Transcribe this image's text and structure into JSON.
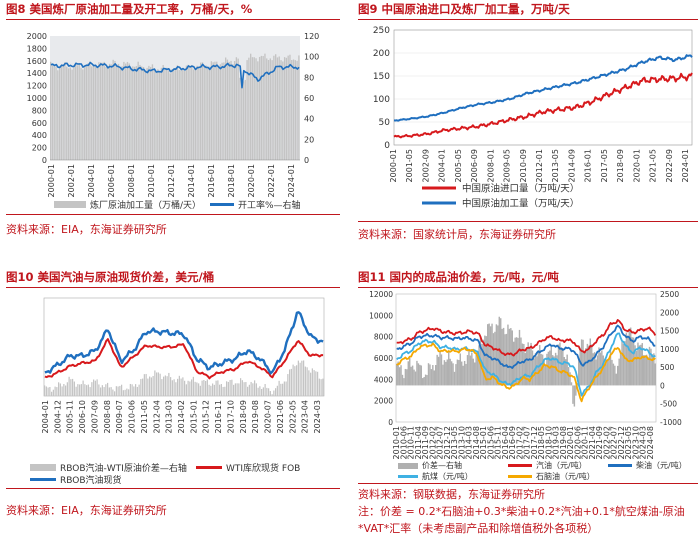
{
  "panels": [
    {
      "label": "图8",
      "title": "美国炼厂原油加工量及开工率，万桶/天，%",
      "source": "资料来源：EIA，东海证券研究所"
    },
    {
      "label": "图9",
      "title": "中国原油进口及炼厂加工量，万吨/天",
      "source": "资料来源：国家统计局，东海证券研究所"
    },
    {
      "label": "图10",
      "title": "美国汽油与原油现货价差，美元/桶",
      "source": "资料来源：EIA，东海证券研究所"
    },
    {
      "label": "图11",
      "title": "国内的成品油价差，元/吨，元/吨",
      "source": "资料来源：钢联数据，东海证券研究所",
      "note_line1": "注：价差 = 0.2*石脑油+0.3*柴油+0.2*汽油+0.1*航空煤油-原油",
      "note_line2": "*VAT*汇率（未考虑副产品和除增值税外各项税）"
    }
  ],
  "chart_data": [
    {
      "id": "fig8",
      "type": "bar+line",
      "title": "美国炼厂原油加工量及开工率，万桶/天，%",
      "x": [
        "2000-01",
        "2002-01",
        "2004-01",
        "2006-01",
        "2008-01",
        "2010-01",
        "2012-01",
        "2014-01",
        "2016-01",
        "2018-01",
        "2020-01",
        "2022-01",
        "2024-01"
      ],
      "left_axis": {
        "ticks": [
          0,
          200,
          400,
          600,
          800,
          1000,
          1200,
          1400,
          1600,
          1800,
          2000
        ],
        "ylim": [
          0,
          2000
        ]
      },
      "right_axis": {
        "ticks": [
          0,
          20,
          40,
          60,
          80,
          100,
          120
        ],
        "ylim": [
          0,
          120
        ]
      },
      "series": [
        {
          "name": "炼厂原油加工量（万桶/天）",
          "kind": "bar",
          "color": "#c4c4c4",
          "values": [
            1520,
            1510,
            1530,
            1560,
            1530,
            1480,
            1460,
            1510,
            1560,
            1620,
            1660,
            1650,
            1640
          ]
        },
        {
          "name": "开工率%—右轴",
          "kind": "line",
          "color": "#1f6fbf",
          "values": [
            91,
            92,
            92,
            91,
            88,
            86,
            88,
            90,
            90,
            92,
            78,
            90,
            90
          ]
        }
      ]
    },
    {
      "id": "fig9",
      "type": "line",
      "title": "中国原油进口及炼厂加工量，万吨/天",
      "x": [
        "2000-01",
        "2001-05",
        "2002-09",
        "2004-01",
        "2005-05",
        "2006-09",
        "2008-01",
        "2009-05",
        "2010-09",
        "2012-01",
        "2013-05",
        "2014-09",
        "2016-01",
        "2017-05",
        "2018-09",
        "2020-01",
        "2021-05",
        "2022-09",
        "2024-01"
      ],
      "yticks": [
        0,
        50,
        100,
        150,
        200,
        250
      ],
      "ylim": [
        0,
        250
      ],
      "series": [
        {
          "name": "中国原油进口量（万吨/天）",
          "color": "#d7191c",
          "values": [
            18,
            20,
            24,
            32,
            36,
            40,
            47,
            55,
            62,
            72,
            77,
            82,
            95,
            111,
            125,
            140,
            143,
            145,
            150
          ]
        },
        {
          "name": "中国原油加工量（万吨/天）",
          "color": "#1f6fbf",
          "values": [
            53,
            57,
            62,
            70,
            80,
            88,
            93,
            100,
            112,
            120,
            128,
            135,
            145,
            155,
            165,
            180,
            190,
            185,
            195
          ]
        }
      ]
    },
    {
      "id": "fig10",
      "type": "bar+line",
      "title": "美国汽油与原油现货价差，美元/桶",
      "x": [
        "2004-01",
        "2004-12",
        "2005-11",
        "2006-10",
        "2007-09",
        "2008-08",
        "2009-07",
        "2010-06",
        "2011-05",
        "2012-04",
        "2013-03",
        "2014-02",
        "2015-01",
        "2015-12",
        "2016-11",
        "2017-10",
        "2018-09",
        "2019-08",
        "2020-07",
        "2021-06",
        "2022-05",
        "2023-04",
        "2024-03"
      ],
      "series": [
        {
          "name": "RBOB汽油-WTI原油价差—右轴",
          "kind": "bar",
          "color": "#c4c4c4",
          "values": [
            8,
            10,
            18,
            12,
            16,
            10,
            9,
            10,
            22,
            25,
            20,
            18,
            16,
            15,
            13,
            16,
            15,
            12,
            5,
            18,
            40,
            30,
            20
          ]
        },
        {
          "name": "WTI库欣现货 FOB",
          "kind": "line",
          "color": "#d7191c",
          "values": [
            35,
            45,
            58,
            64,
            68,
            110,
            55,
            76,
            98,
            95,
            95,
            100,
            48,
            37,
            47,
            52,
            68,
            56,
            38,
            70,
            108,
            78,
            80
          ]
        },
        {
          "name": "RBOB汽油现货",
          "kind": "line",
          "color": "#1f6fbf",
          "values": [
            45,
            60,
            78,
            78,
            88,
            130,
            68,
            88,
            125,
            125,
            122,
            120,
            72,
            55,
            64,
            72,
            88,
            72,
            45,
            92,
            165,
            115,
            105
          ]
        }
      ]
    },
    {
      "id": "fig11",
      "type": "bar+line",
      "title": "国内的成品油价差，元/吨，元/吨",
      "x": [
        "2010-01",
        "2010-06",
        "2010-11",
        "2011-04",
        "2011-09",
        "2012-02",
        "2012-07",
        "2012-12",
        "2013-05",
        "2013-10",
        "2014-03",
        "2014-08",
        "2015-01",
        "2015-06",
        "2015-11",
        "2016-04",
        "2016-09",
        "2017-02",
        "2017-07",
        "2017-12",
        "2018-05",
        "2018-10",
        "2019-03",
        "2019-08",
        "2020-01",
        "2020-06",
        "2020-11",
        "2021-04",
        "2021-09",
        "2022-02",
        "2022-07",
        "2022-12",
        "2023-05",
        "2023-10",
        "2024-03",
        "2024-08"
      ],
      "left_axis": {
        "ticks": [
          0,
          2000,
          4000,
          6000,
          8000,
          10000,
          12000
        ],
        "ylim": [
          0,
          12000
        ]
      },
      "right_axis": {
        "ticks": [
          -1000,
          -500,
          0,
          500,
          1000,
          1500,
          2000,
          2500
        ],
        "ylim": [
          -1000,
          2500
        ]
      },
      "series": [
        {
          "name": "价差—右轴",
          "kind": "bar",
          "color": "#b0b0b0",
          "values": [
            500,
            400,
            600,
            500,
            300,
            600,
            800,
            700,
            600,
            700,
            800,
            900,
            1500,
            1600,
            1700,
            1500,
            1400,
            1200,
            1000,
            900,
            800,
            900,
            1000,
            900,
            -600,
            1200,
            1100,
            900,
            800,
            700,
            500,
            1500,
            1300,
            1000,
            900,
            800
          ]
        },
        {
          "name": "汽油（元/吨）",
          "color": "#d7191c",
          "values": [
            7300,
            7600,
            7800,
            8400,
            8600,
            8800,
            8500,
            8400,
            8300,
            8400,
            8500,
            8300,
            7200,
            7000,
            6600,
            6300,
            6400,
            6800,
            6900,
            7300,
            7800,
            8000,
            7600,
            7700,
            7500,
            6600,
            6800,
            7600,
            8200,
            9200,
            9500,
            8600,
            8400,
            8600,
            8800,
            8300
          ]
        },
        {
          "name": "柴油（元/吨）",
          "color": "#1f6fbf",
          "values": [
            6800,
            7100,
            7400,
            8000,
            8100,
            8100,
            7900,
            7900,
            7800,
            7900,
            7800,
            7600,
            6200,
            6000,
            5600,
            5100,
            5300,
            5700,
            5800,
            6400,
            6900,
            7300,
            6900,
            6900,
            6700,
            5400,
            5600,
            6300,
            7100,
            8300,
            9000,
            8000,
            7600,
            8000,
            7800,
            7200
          ]
        },
        {
          "name": "航煤（元/吨）",
          "color": "#3fb1e3",
          "values": [
            5900,
            6400,
            6700,
            7400,
            7600,
            7500,
            7000,
            7000,
            6800,
            6900,
            6800,
            6500,
            4800,
            4500,
            3900,
            3500,
            3800,
            4300,
            4300,
            5100,
            5800,
            6000,
            5600,
            5500,
            5200,
            2600,
            3300,
            4600,
            5500,
            7000,
            8400,
            7100,
            6500,
            7000,
            6600,
            6100
          ]
        },
        {
          "name": "石脑油（元/吨）",
          "color": "#f5a800",
          "values": [
            5400,
            5900,
            6200,
            7000,
            7200,
            7200,
            6600,
            6700,
            6600,
            6800,
            6800,
            6200,
            4000,
            4200,
            3600,
            3200,
            3400,
            4100,
            4000,
            4600,
            5300,
            5200,
            4800,
            4600,
            4200,
            2000,
            3200,
            4200,
            5100,
            6400,
            7000,
            5800,
            5800,
            6100,
            6000,
            5800
          ]
        }
      ]
    }
  ]
}
